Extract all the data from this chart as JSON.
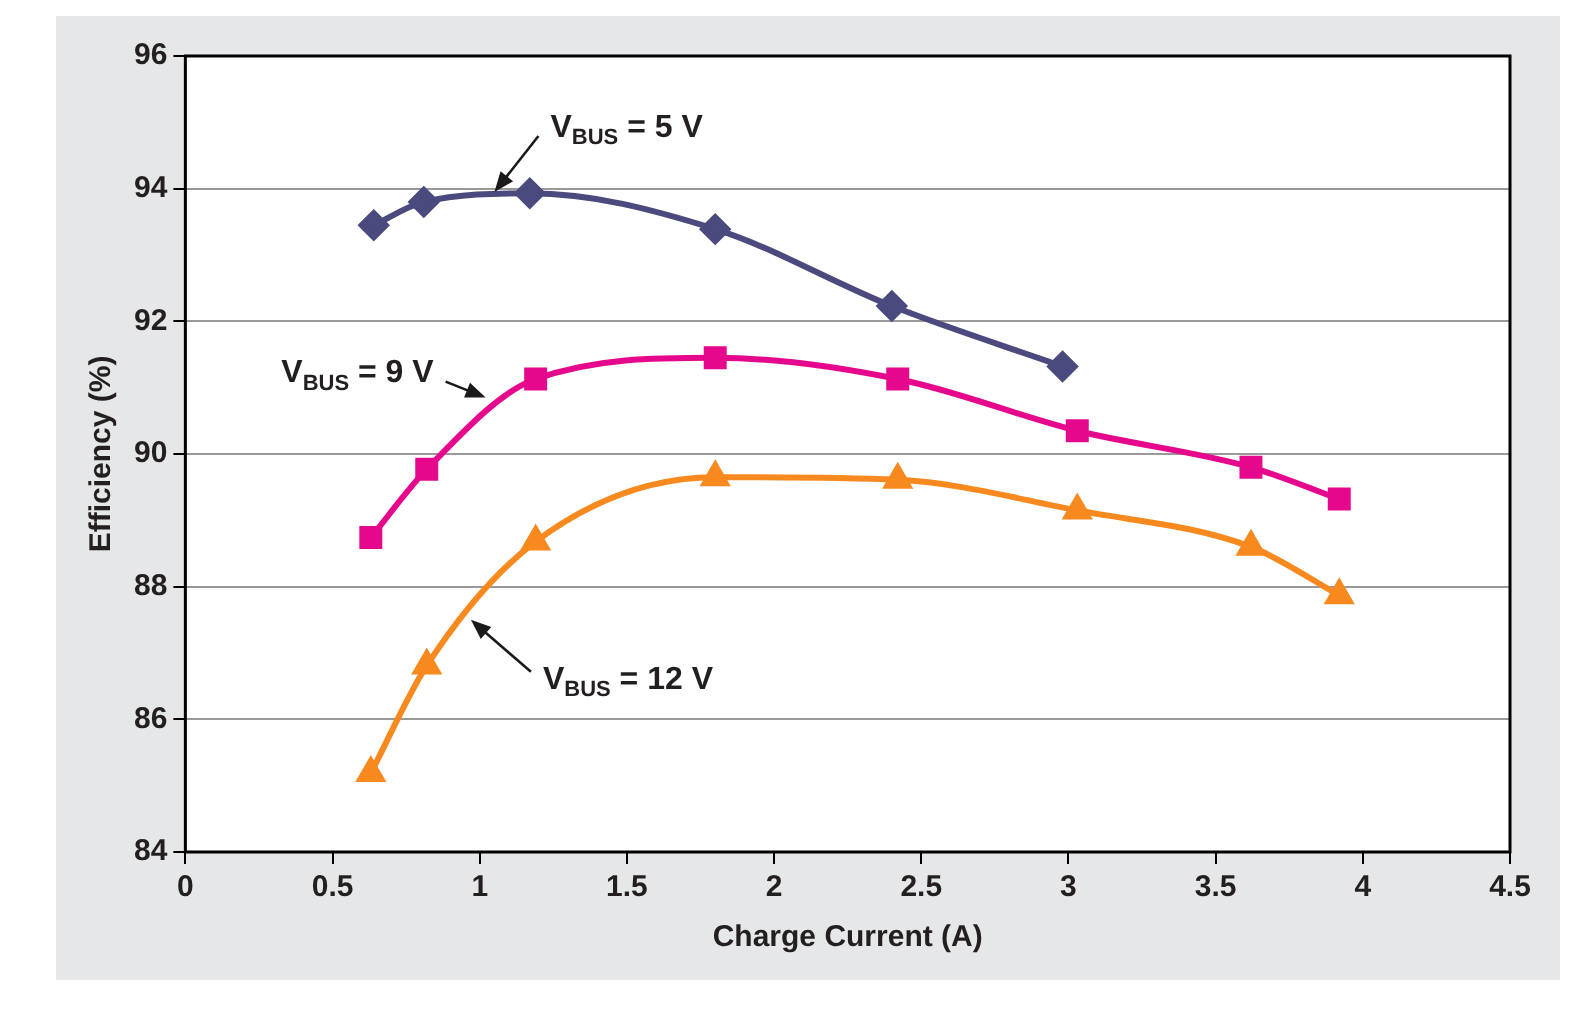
{
  "chart_data": {
    "type": "line",
    "xlabel": "Charge Current (A)",
    "ylabel": "Efficiency (%)",
    "xlim": [
      0,
      4.5
    ],
    "xticks": [
      0,
      0.5,
      1,
      1.5,
      2,
      2.5,
      3,
      3.5,
      4,
      4.5
    ],
    "ylim": [
      84,
      96
    ],
    "yticks": [
      84,
      86,
      88,
      90,
      92,
      94,
      96
    ],
    "grid": "y",
    "legend": false,
    "series": [
      {
        "color": "#4b4a7e",
        "marker": "diamond",
        "x": [
          0.64,
          0.81,
          1.17,
          1.8,
          2.4,
          2.98
        ],
        "values": [
          93.45,
          93.8,
          93.93,
          93.39,
          92.23,
          91.32
        ]
      },
      {
        "color": "#e6088c",
        "marker": "square",
        "x": [
          0.63,
          0.82,
          1.19,
          1.8,
          2.42,
          3.03,
          3.62,
          3.92
        ],
        "values": [
          88.74,
          89.77,
          91.13,
          91.45,
          91.13,
          90.35,
          89.8,
          89.32
        ]
      },
      {
        "color": "#f7891f",
        "marker": "triangle",
        "x": [
          0.63,
          0.82,
          1.19,
          1.8,
          2.42,
          3.03,
          3.62,
          3.92
        ],
        "values": [
          85.19,
          86.81,
          88.68,
          89.65,
          89.61,
          89.15,
          88.6,
          87.87
        ]
      }
    ],
    "annotations": [
      {
        "text": "V$_{BUS}$ = 5 V",
        "x": 1.05,
        "y": 93.95
      },
      {
        "text": "V$_{BUS}$ = 9 V",
        "x": 1.02,
        "y": 90.85
      },
      {
        "text": "V$_{BUS}$ = 12 V",
        "x": 0.97,
        "y": 87.5
      }
    ]
  }
}
